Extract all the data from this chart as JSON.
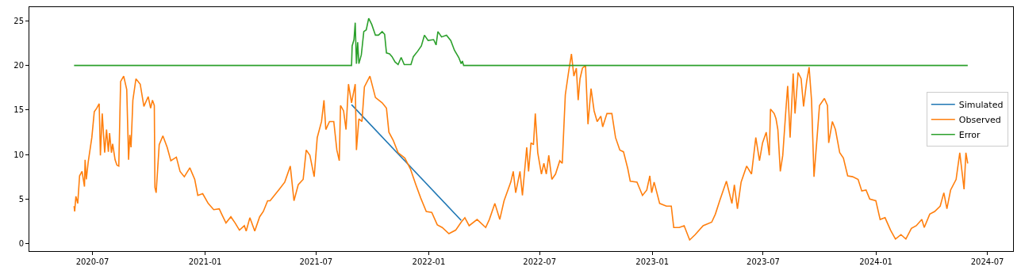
{
  "chart_data": {
    "type": "line",
    "xlim": [
      "2020-03-20",
      "2024-08-12"
    ],
    "ylim": [
      -0.85,
      26.55
    ],
    "xticks": [
      "2020-07",
      "2021-01",
      "2021-07",
      "2022-01",
      "2022-07",
      "2023-01",
      "2023-07",
      "2024-01",
      "2024-07"
    ],
    "yticks": [
      0,
      5,
      10,
      15,
      20,
      25
    ],
    "grid": false,
    "legend": "right",
    "marker": "none",
    "line_style": "solid",
    "series": [
      {
        "name": "Simulated",
        "color": "#1f77b4",
        "x": [
          "2021-08-28",
          "2022-02-23"
        ],
        "values": [
          15.6,
          2.6
        ]
      },
      {
        "name": "Observed",
        "color": "#ff7f0e",
        "x": [
          "2020-06-01",
          "2020-06-02",
          "2020-06-04",
          "2020-06-07",
          "2020-06-10",
          "2020-06-14",
          "2020-06-18",
          "2020-06-19",
          "2020-06-21",
          "2020-06-24",
          "2020-06-30",
          "2020-07-04",
          "2020-07-08",
          "2020-07-12",
          "2020-07-14",
          "2020-07-17",
          "2020-07-21",
          "2020-07-24",
          "2020-07-27",
          "2020-07-29",
          "2020-08-01",
          "2020-08-03",
          "2020-08-07",
          "2020-08-10",
          "2020-08-13",
          "2020-08-16",
          "2020-08-21",
          "2020-08-26",
          "2020-08-29",
          "2020-08-31",
          "2020-09-02",
          "2020-09-05",
          "2020-09-10",
          "2020-09-17",
          "2020-09-23",
          "2020-09-30",
          "2020-10-04",
          "2020-10-07",
          "2020-10-10",
          "2020-10-11",
          "2020-10-13",
          "2020-10-18",
          "2020-10-24",
          "2020-10-31",
          "2020-11-06",
          "2020-11-15",
          "2020-11-21",
          "2020-11-28",
          "2020-12-07",
          "2020-12-15",
          "2020-12-20",
          "2020-12-28",
          "2021-01-06",
          "2021-01-15",
          "2021-01-24",
          "2021-01-28",
          "2021-02-04",
          "2021-02-12",
          "2021-02-19",
          "2021-02-26",
          "2021-03-06",
          "2021-03-09",
          "2021-03-15",
          "2021-03-23",
          "2021-03-31",
          "2021-04-06",
          "2021-04-13",
          "2021-04-17",
          "2021-05-02",
          "2021-05-11",
          "2021-05-20",
          "2021-05-26",
          "2021-06-02",
          "2021-06-10",
          "2021-06-15",
          "2021-06-21",
          "2021-06-28",
          "2021-07-03",
          "2021-07-10",
          "2021-07-14",
          "2021-07-17",
          "2021-07-23",
          "2021-07-30",
          "2021-08-04",
          "2021-08-08",
          "2021-08-10",
          "2021-08-15",
          "2021-08-19",
          "2021-08-23",
          "2021-08-28",
          "2021-09-03",
          "2021-09-05",
          "2021-09-09",
          "2021-09-14",
          "2021-09-18",
          "2021-09-27",
          "2021-10-06",
          "2021-10-17",
          "2021-10-24",
          "2021-10-28",
          "2021-11-04",
          "2021-11-12",
          "2021-11-23",
          "2021-12-02",
          "2021-12-11",
          "2021-12-19",
          "2021-12-28",
          "2022-01-06",
          "2022-01-15",
          "2022-01-23",
          "2022-02-03",
          "2022-02-14",
          "2022-02-23",
          "2022-03-01",
          "2022-03-08",
          "2022-03-21",
          "2022-04-04",
          "2022-04-10",
          "2022-04-19",
          "2022-04-27",
          "2022-05-04",
          "2022-05-15",
          "2022-05-19",
          "2022-05-23",
          "2022-05-30",
          "2022-06-03",
          "2022-06-10",
          "2022-06-13",
          "2022-06-17",
          "2022-06-21",
          "2022-06-24",
          "2022-06-28",
          "2022-07-04",
          "2022-07-08",
          "2022-07-12",
          "2022-07-16",
          "2022-07-21",
          "2022-07-27",
          "2022-08-03",
          "2022-08-07",
          "2022-08-12",
          "2022-08-17",
          "2022-08-22",
          "2022-08-26",
          "2022-08-30",
          "2022-09-02",
          "2022-09-05",
          "2022-09-09",
          "2022-09-14",
          "2022-09-18",
          "2022-09-23",
          "2022-09-28",
          "2022-10-03",
          "2022-10-09",
          "2022-10-12",
          "2022-10-19",
          "2022-10-27",
          "2022-11-02",
          "2022-11-09",
          "2022-11-15",
          "2022-11-22",
          "2022-11-26",
          "2022-12-07",
          "2022-12-16",
          "2022-12-23",
          "2022-12-28",
          "2022-12-31",
          "2023-01-04",
          "2023-01-13",
          "2023-01-24",
          "2023-02-01",
          "2023-02-05",
          "2023-02-14",
          "2023-02-22",
          "2023-03-03",
          "2023-03-12",
          "2023-03-25",
          "2023-04-08",
          "2023-04-14",
          "2023-04-21",
          "2023-05-02",
          "2023-05-11",
          "2023-05-15",
          "2023-05-20",
          "2023-05-26",
          "2023-06-04",
          "2023-06-12",
          "2023-06-19",
          "2023-06-25",
          "2023-06-30",
          "2023-07-06",
          "2023-07-11",
          "2023-07-13",
          "2023-07-19",
          "2023-07-22",
          "2023-07-25",
          "2023-07-29",
          "2023-08-02",
          "2023-08-07",
          "2023-08-10",
          "2023-08-14",
          "2023-08-19",
          "2023-08-22",
          "2023-08-27",
          "2023-09-01",
          "2023-09-05",
          "2023-09-10",
          "2023-09-14",
          "2023-09-18",
          "2023-09-22",
          "2023-09-27",
          "2023-10-01",
          "2023-10-09",
          "2023-10-14",
          "2023-10-16",
          "2023-10-22",
          "2023-10-27",
          "2023-11-03",
          "2023-11-09",
          "2023-11-16",
          "2023-11-24",
          "2023-12-03",
          "2023-12-09",
          "2023-12-16",
          "2023-12-22",
          "2024-01-01",
          "2024-01-08",
          "2024-01-16",
          "2024-01-25",
          "2024-02-02",
          "2024-02-11",
          "2024-02-19",
          "2024-02-28",
          "2024-03-07",
          "2024-03-16",
          "2024-03-20",
          "2024-03-29",
          "2024-04-06",
          "2024-04-15",
          "2024-04-21",
          "2024-04-26",
          "2024-05-02",
          "2024-05-11",
          "2024-05-17",
          "2024-05-24",
          "2024-05-27",
          "2024-05-30"
        ],
        "values": [
          4.2,
          3.6,
          5.3,
          4.5,
          7.6,
          8.1,
          6.4,
          9.4,
          7.2,
          9.1,
          11.9,
          14.8,
          15.2,
          15.7,
          9.9,
          14.6,
          10.2,
          12.8,
          10.3,
          12.4,
          10.2,
          11.2,
          9.4,
          8.8,
          8.7,
          18.2,
          18.8,
          17.3,
          9.4,
          12.2,
          10.8,
          16.1,
          18.5,
          17.9,
          15.4,
          16.5,
          15.2,
          16.1,
          15.5,
          6.3,
          5.7,
          11.1,
          12.1,
          10.8,
          9.3,
          9.7,
          8.1,
          7.5,
          8.5,
          7.2,
          5.4,
          5.6,
          4.5,
          3.8,
          3.9,
          3.3,
          2.3,
          3.0,
          2.3,
          1.5,
          2.0,
          1.4,
          2.9,
          1.4,
          3.0,
          3.6,
          4.8,
          4.8,
          6.1,
          6.9,
          8.7,
          4.8,
          6.6,
          7.2,
          10.5,
          9.9,
          7.5,
          11.9,
          13.7,
          16.1,
          12.8,
          13.7,
          13.7,
          10.5,
          9.3,
          15.5,
          14.9,
          12.8,
          17.9,
          15.8,
          17.9,
          10.5,
          14.0,
          13.7,
          17.6,
          18.8,
          16.4,
          15.8,
          15.2,
          12.5,
          11.6,
          10.2,
          9.6,
          8.4,
          6.6,
          5.1,
          3.6,
          3.5,
          2.1,
          1.8,
          1.1,
          1.5,
          2.4,
          2.9,
          2.0,
          2.7,
          1.8,
          2.7,
          4.5,
          2.7,
          4.8,
          6.9,
          8.1,
          5.7,
          8.1,
          5.4,
          10.8,
          8.1,
          11.3,
          11.1,
          14.6,
          10.2,
          7.8,
          9.0,
          7.8,
          9.9,
          7.2,
          7.8,
          9.3,
          9.0,
          16.7,
          19.1,
          21.3,
          18.8,
          19.7,
          16.1,
          18.5,
          19.7,
          20.0,
          13.4,
          17.4,
          14.9,
          13.7,
          14.3,
          13.1,
          14.6,
          14.6,
          11.9,
          10.5,
          10.3,
          8.4,
          7.0,
          6.9,
          5.4,
          6.0,
          7.6,
          5.7,
          6.9,
          4.5,
          4.2,
          4.2,
          1.8,
          1.8,
          2.0,
          0.4,
          1.0,
          2.0,
          2.4,
          3.3,
          4.8,
          7.0,
          4.5,
          6.6,
          3.9,
          6.9,
          8.7,
          7.8,
          11.9,
          9.3,
          11.3,
          12.5,
          9.9,
          15.1,
          14.6,
          14.0,
          12.8,
          8.1,
          9.9,
          14.9,
          17.7,
          11.9,
          19.1,
          14.6,
          19.2,
          18.5,
          15.4,
          18.2,
          19.8,
          16.1,
          7.5,
          11.9,
          15.5,
          16.3,
          15.5,
          11.3,
          13.7,
          12.8,
          10.2,
          9.6,
          7.6,
          7.5,
          7.2,
          5.9,
          6.0,
          5.0,
          4.8,
          2.7,
          2.9,
          1.5,
          0.5,
          1.0,
          0.5,
          1.7,
          2.0,
          2.7,
          1.8,
          3.3,
          3.6,
          4.2,
          5.7,
          3.9,
          6.0,
          7.2,
          10.2,
          6.1,
          10.2,
          9.0
        ]
      },
      {
        "name": "Error",
        "color": "#2ca02c",
        "x": [
          "2020-06-01",
          "2021-08-28",
          "2021-08-29",
          "2021-09-01",
          "2021-09-03",
          "2021-09-05",
          "2021-09-07",
          "2021-09-09",
          "2021-09-13",
          "2021-09-17",
          "2021-09-21",
          "2021-09-25",
          "2021-09-30",
          "2021-10-06",
          "2021-10-11",
          "2021-10-17",
          "2021-10-21",
          "2021-10-24",
          "2021-10-29",
          "2021-11-02",
          "2021-11-07",
          "2021-11-12",
          "2021-11-17",
          "2021-11-22",
          "2021-12-03",
          "2021-12-07",
          "2021-12-14",
          "2021-12-20",
          "2021-12-25",
          "2021-12-31",
          "2022-01-09",
          "2022-01-13",
          "2022-01-16",
          "2022-01-22",
          "2022-01-30",
          "2022-02-06",
          "2022-02-12",
          "2022-02-19",
          "2022-02-23",
          "2022-02-25",
          "2022-02-27",
          "2024-05-30"
        ],
        "values": [
          20.0,
          20.0,
          22.2,
          22.9,
          24.8,
          20.2,
          22.6,
          20.2,
          21.2,
          23.8,
          24.0,
          25.3,
          24.6,
          23.4,
          23.4,
          23.8,
          23.5,
          21.4,
          21.3,
          21.0,
          20.4,
          20.1,
          20.9,
          20.1,
          20.1,
          21.0,
          21.6,
          22.2,
          23.4,
          22.8,
          22.9,
          22.3,
          23.8,
          23.2,
          23.4,
          22.8,
          21.7,
          20.9,
          20.2,
          20.5,
          20.0,
          20.0
        ]
      }
    ]
  }
}
